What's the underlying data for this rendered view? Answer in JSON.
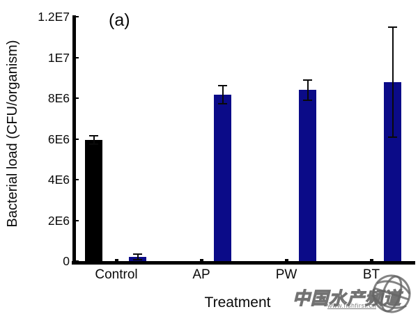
{
  "chart_data": {
    "type": "bar",
    "title": "(a)",
    "xlabel": "Treatment",
    "ylabel": "Bacterial load (CFU/organism)",
    "categories": [
      "Control",
      "AP",
      "PW",
      "BT"
    ],
    "series": [
      {
        "name": "black-series",
        "color": "#000000",
        "values": [
          5950000,
          null,
          null,
          null
        ],
        "errors": [
          200000,
          null,
          null,
          null
        ]
      },
      {
        "name": "blue-series",
        "color": "#0b0b88",
        "values": [
          200000,
          8170000,
          8400000,
          8800000
        ],
        "errors": [
          140000,
          450000,
          500000,
          2700000
        ]
      }
    ],
    "ylim": [
      0,
      12000000
    ],
    "ytick_values": [
      0,
      2000000,
      4000000,
      6000000,
      8000000,
      10000000,
      12000000
    ],
    "ytick_labels": [
      "0",
      "2E6",
      "4E6",
      "6E6",
      "8E6",
      "1E7",
      "1.2E7"
    ],
    "grid": false,
    "legend": "none"
  },
  "watermark": {
    "text": "中国水产频道",
    "url": "www.fishfirst.cn"
  }
}
